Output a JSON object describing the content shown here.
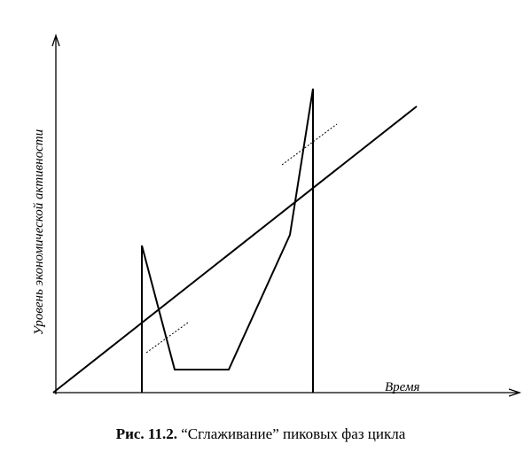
{
  "axes": {
    "y_label": "Уровень экономической активности",
    "x_label": "Время"
  },
  "caption": {
    "number": "Рис. 11.2.",
    "text": "“Сглаживание” пиковых фаз цикла"
  }
}
